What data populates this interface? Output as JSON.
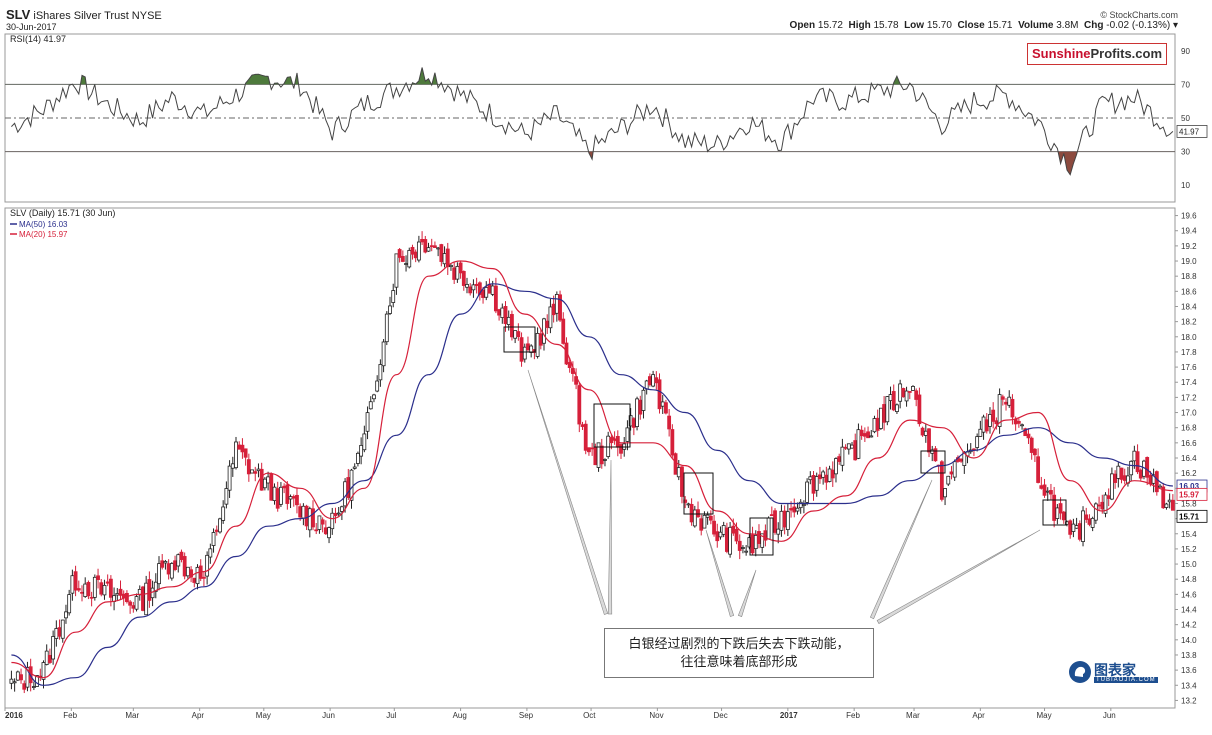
{
  "header": {
    "symbol": "SLV",
    "name": "iShares Silver Trust NYSE",
    "date": "30-Jun-2017",
    "copyright": "© StockCharts.com",
    "open_label": "Open",
    "open": "15.72",
    "high_label": "High",
    "high": "15.78",
    "low_label": "Low",
    "low": "15.70",
    "close_label": "Close",
    "close": "15.71",
    "volume_label": "Volume",
    "volume": "3.8M",
    "chg_label": "Chg",
    "chg": "-0.02 (-0.13%)"
  },
  "brand": {
    "part1": "Sunshine",
    "part2": "Profits.com"
  },
  "callout": {
    "line1": "白银经过剧烈的下跌后失去下跌动能，",
    "line2": "往往意味着底部形成"
  },
  "logo": {
    "title": "图表家",
    "subtitle": "TUBIAOJIA.COM"
  },
  "colors": {
    "up": "#222222",
    "down": "#d6203a",
    "ma50": "#2b2f8c",
    "ma20": "#d6203a",
    "rsi": "#444444",
    "rsi_over": "#4e7a3c",
    "rsi_under": "#8c4a3e"
  },
  "chart_data": [
    {
      "type": "line",
      "panel": "rsi",
      "legend": "RSI(14) 41.97",
      "last_value_label": "41.97",
      "ylim": [
        0,
        100
      ],
      "yticks": [
        "90",
        "70",
        "50",
        "30",
        "10"
      ],
      "levels": [
        70,
        50,
        30
      ],
      "x": [
        "2016-01-04",
        "2016-01-19",
        "2016-02-03",
        "2016-02-18",
        "2016-03-04",
        "2016-03-19",
        "2016-04-03",
        "2016-04-18",
        "2016-05-03",
        "2016-05-18",
        "2016-06-02",
        "2016-06-17",
        "2016-07-02",
        "2016-07-17",
        "2016-08-01",
        "2016-08-16",
        "2016-08-31",
        "2016-09-15",
        "2016-09-30",
        "2016-10-15",
        "2016-10-30",
        "2016-11-14",
        "2016-11-29",
        "2016-12-14",
        "2016-12-29",
        "2017-01-13",
        "2017-01-28",
        "2017-02-12",
        "2017-02-27",
        "2017-03-14",
        "2017-03-29",
        "2017-04-13",
        "2017-04-28",
        "2017-05-13",
        "2017-05-28",
        "2017-06-12",
        "2017-06-30"
      ],
      "values": [
        45,
        55,
        72,
        58,
        48,
        62,
        52,
        64,
        74,
        70,
        42,
        58,
        68,
        78,
        64,
        52,
        40,
        52,
        30,
        44,
        58,
        36,
        34,
        48,
        36,
        62,
        60,
        66,
        70,
        46,
        60,
        64,
        48,
        22,
        58,
        62,
        42
      ]
    },
    {
      "type": "candlestick",
      "panel": "price",
      "legend": [
        "SLV (Daily) 15.71 (30 Jun)",
        "MA(50) 16.03",
        "MA(20) 15.97"
      ],
      "last_value_labels": [
        "16.03",
        "15.97",
        "15.71"
      ],
      "ylim": [
        13.1,
        19.7
      ],
      "yticks": [
        "19.6",
        "19.4",
        "19.2",
        "19.0",
        "18.8",
        "18.6",
        "18.4",
        "18.2",
        "18.0",
        "17.8",
        "17.6",
        "17.4",
        "17.2",
        "17.0",
        "16.8",
        "16.6",
        "16.4",
        "16.2",
        "16.0",
        "15.8",
        "15.6",
        "15.4",
        "15.2",
        "15.0",
        "14.8",
        "14.6",
        "14.4",
        "14.2",
        "14.0",
        "13.8",
        "13.6",
        "13.4",
        "13.2"
      ],
      "xlabels": [
        "2016",
        "Feb",
        "Mar",
        "Apr",
        "May",
        "Jun",
        "Jul",
        "Aug",
        "Sep",
        "Oct",
        "Nov",
        "Dec",
        "2017",
        "Feb",
        "Mar",
        "Apr",
        "May",
        "Jun"
      ],
      "x": [
        "2016-01-04",
        "2016-01-19",
        "2016-02-03",
        "2016-02-18",
        "2016-03-04",
        "2016-03-19",
        "2016-04-03",
        "2016-04-18",
        "2016-05-03",
        "2016-05-18",
        "2016-06-02",
        "2016-06-17",
        "2016-07-02",
        "2016-07-17",
        "2016-08-01",
        "2016-08-16",
        "2016-08-31",
        "2016-09-15",
        "2016-09-30",
        "2016-10-15",
        "2016-10-30",
        "2016-11-14",
        "2016-11-29",
        "2016-12-14",
        "2016-12-29",
        "2017-01-13",
        "2017-01-28",
        "2017-02-12",
        "2017-02-27",
        "2017-03-14",
        "2017-03-29",
        "2017-04-13",
        "2017-04-28",
        "2017-05-13",
        "2017-05-28",
        "2017-06-12",
        "2017-06-30"
      ],
      "close": [
        13.4,
        13.6,
        14.8,
        14.6,
        14.5,
        15.1,
        14.8,
        16.5,
        16.0,
        15.7,
        15.5,
        16.6,
        19.0,
        19.3,
        18.8,
        18.6,
        17.7,
        18.4,
        16.4,
        16.6,
        17.5,
        15.8,
        15.4,
        15.2,
        15.6,
        16.1,
        16.4,
        16.9,
        17.4,
        16.0,
        16.6,
        17.2,
        16.2,
        15.3,
        15.9,
        16.4,
        15.71
      ],
      "ma50": [
        13.8,
        13.4,
        13.5,
        13.9,
        14.3,
        14.5,
        14.7,
        15.1,
        15.5,
        15.6,
        15.8,
        16.1,
        16.7,
        17.5,
        18.3,
        18.7,
        18.6,
        18.5,
        18.0,
        17.5,
        17.3,
        17.0,
        16.5,
        16.1,
        15.8,
        15.8,
        15.8,
        15.9,
        16.1,
        16.3,
        16.5,
        16.7,
        16.8,
        16.6,
        16.4,
        16.3,
        16.03
      ],
      "ma20": [
        13.7,
        13.5,
        14.1,
        14.5,
        14.6,
        14.7,
        14.9,
        15.5,
        16.2,
        16.0,
        15.6,
        16.0,
        17.5,
        18.8,
        19.0,
        18.9,
        18.3,
        17.9,
        17.3,
        16.6,
        16.6,
        16.3,
        15.7,
        15.4,
        15.3,
        15.7,
        15.9,
        16.4,
        16.9,
        16.8,
        16.4,
        16.9,
        17.0,
        16.1,
        15.7,
        16.1,
        15.97
      ]
    }
  ]
}
